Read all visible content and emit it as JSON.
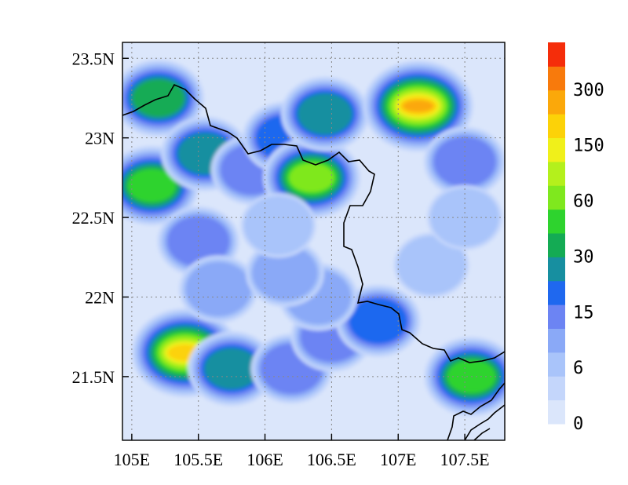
{
  "map": {
    "x_ticks": [
      "105E",
      "105.5E",
      "106E",
      "106.5E",
      "107E",
      "107.5E"
    ],
    "y_ticks": [
      "23.5N",
      "23N",
      "22.5N",
      "22N",
      "21.5N"
    ],
    "colorbar": {
      "levels": [
        "0",
        "6",
        "15",
        "30",
        "60",
        "150",
        "300"
      ],
      "colors": [
        "#dbe6fb",
        "#c4d6fb",
        "#a9c4fa",
        "#8aa9f7",
        "#6c84f3",
        "#1f68ef",
        "#178fa0",
        "#14ab54",
        "#2ed32e",
        "#7fe81e",
        "#b4f01c",
        "#f0f01a",
        "#fcd208",
        "#fba80a",
        "#f87a0c",
        "#f52d0a"
      ]
    },
    "field": {
      "background_color": "#dbe6fb",
      "blobs": [
        {
          "lon": 105.2,
          "lat": 23.25,
          "level": 6
        },
        {
          "lon": 105.15,
          "lat": 22.7,
          "level": 7
        },
        {
          "lon": 105.55,
          "lat": 22.9,
          "level": 5
        },
        {
          "lon": 105.9,
          "lat": 22.8,
          "level": 3
        },
        {
          "lon": 106.15,
          "lat": 23.0,
          "level": 4
        },
        {
          "lon": 106.35,
          "lat": 22.75,
          "level": 8
        },
        {
          "lon": 106.45,
          "lat": 23.15,
          "level": 5
        },
        {
          "lon": 107.15,
          "lat": 23.2,
          "level": 12
        },
        {
          "lon": 107.5,
          "lat": 22.85,
          "level": 3
        },
        {
          "lon": 105.4,
          "lat": 21.65,
          "level": 11
        },
        {
          "lon": 105.75,
          "lat": 21.55,
          "level": 5
        },
        {
          "lon": 106.2,
          "lat": 21.55,
          "level": 3
        },
        {
          "lon": 106.5,
          "lat": 21.75,
          "level": 3
        },
        {
          "lon": 107.55,
          "lat": 21.5,
          "level": 7
        },
        {
          "lon": 106.85,
          "lat": 21.85,
          "level": 4
        },
        {
          "lon": 105.5,
          "lat": 22.35,
          "level": 3
        },
        {
          "lon": 105.65,
          "lat": 22.05,
          "level": 2
        },
        {
          "lon": 106.4,
          "lat": 22.0,
          "level": 2
        },
        {
          "lon": 106.15,
          "lat": 22.15,
          "level": 2
        },
        {
          "lon": 106.1,
          "lat": 22.45,
          "level": 1
        },
        {
          "lon": 107.25,
          "lat": 22.2,
          "level": 1
        },
        {
          "lon": 107.5,
          "lat": 22.5,
          "level": 1
        }
      ]
    }
  }
}
